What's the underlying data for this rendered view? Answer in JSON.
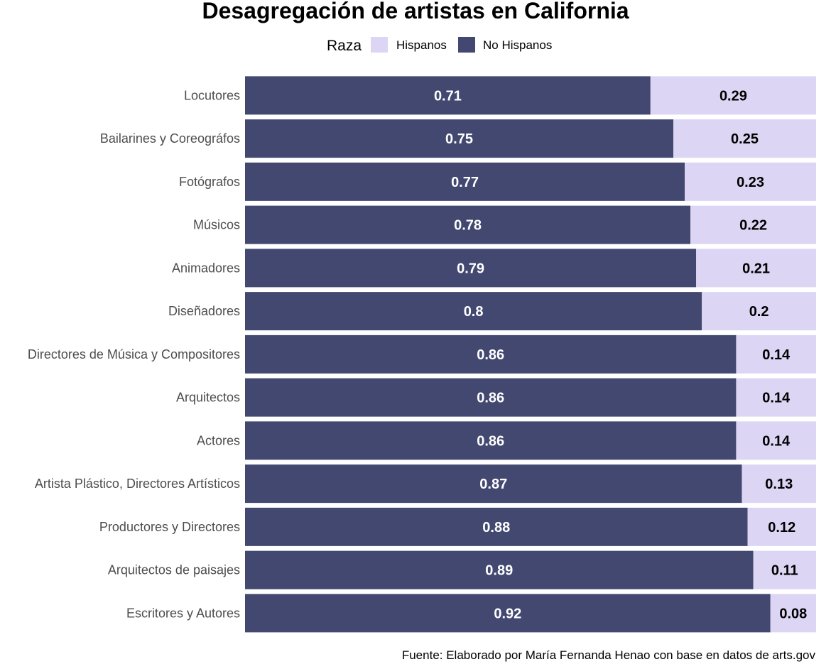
{
  "chart_data": {
    "type": "bar",
    "orientation": "horizontal",
    "stacked": true,
    "title": "Desagregación de artistas en California",
    "caption": "Fuente: Elaborado por María Fernanda Henao con base en datos de arts.gov",
    "legend": {
      "title": "Raza",
      "position": "top",
      "entries": [
        "Hispanos",
        "No Hispanos"
      ]
    },
    "categories": [
      "Locutores",
      "Bailarines y Coreográfos",
      "Fotógrafos",
      "Músicos",
      "Animadores",
      "Diseñadores",
      "Directores de Música y Compositores",
      "Arquitectos",
      "Actores",
      "Artista Plástico, Directores Artísticos",
      "Productores y Directores",
      "Arquitectos de paisajes",
      "Escritores y Autores"
    ],
    "series": [
      {
        "name": "No Hispanos",
        "color": "#424870",
        "label_color": "#ffffff",
        "values": [
          0.71,
          0.75,
          0.77,
          0.78,
          0.79,
          0.8,
          0.86,
          0.86,
          0.86,
          0.87,
          0.88,
          0.89,
          0.92
        ]
      },
      {
        "name": "Hispanos",
        "color": "#dcd6f4",
        "label_color": "#000000",
        "values": [
          0.29,
          0.25,
          0.23,
          0.22,
          0.21,
          0.2,
          0.14,
          0.14,
          0.14,
          0.13,
          0.12,
          0.11,
          0.08
        ]
      }
    ],
    "xlim": [
      0,
      1
    ],
    "grid": false,
    "axes_visible": false
  }
}
